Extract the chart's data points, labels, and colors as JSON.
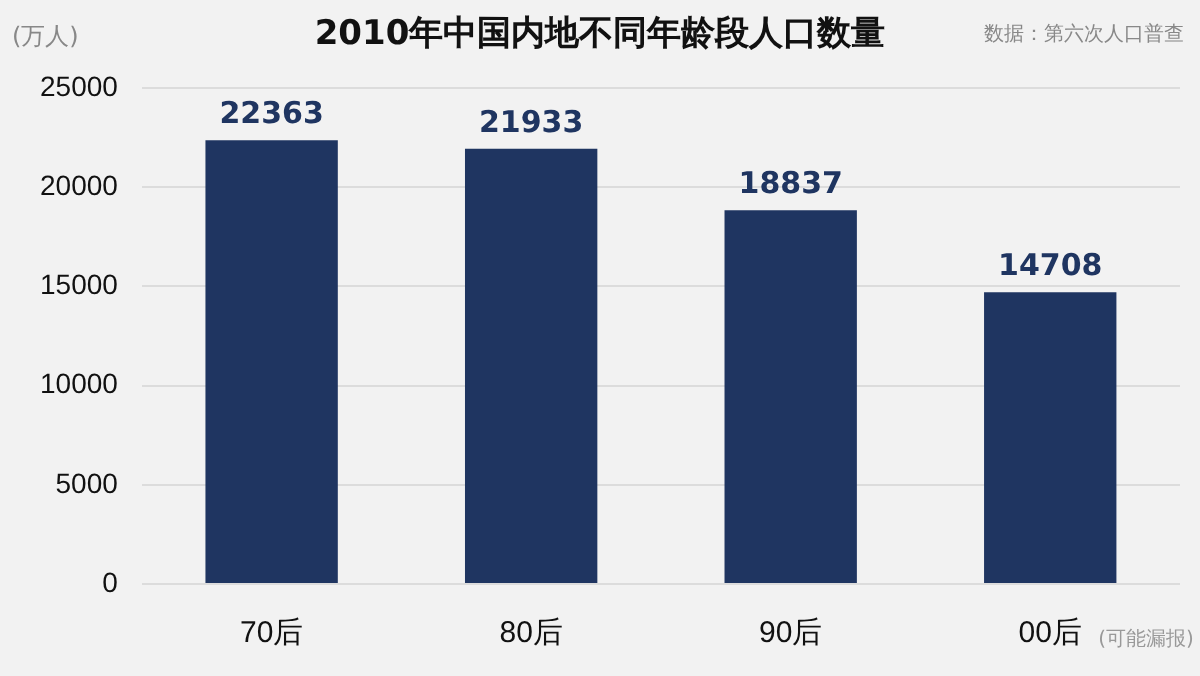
{
  "chart_data": {
    "type": "bar",
    "title": "2010年中国内地不同年龄段人口数量",
    "ylabel": "(万人)",
    "categories": [
      "70后",
      "80后",
      "90后",
      "00后"
    ],
    "values": [
      22363,
      21933,
      18837,
      14708
    ],
    "color": "#1f3561",
    "ylim": [
      0,
      25000
    ],
    "yticks": [
      0,
      5000,
      10000,
      15000,
      20000,
      25000
    ],
    "grid": "y",
    "data_labels": true,
    "annotations": [
      "数据：第六次人口普查",
      "(可能漏报)"
    ]
  }
}
